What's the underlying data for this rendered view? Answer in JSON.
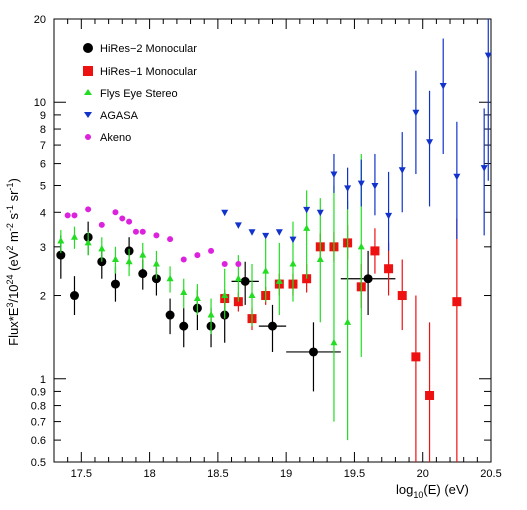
{
  "chart_data": {
    "type": "scatter",
    "title": "",
    "xlabel": {
      "main": "log",
      "sub": "10",
      "rest": "(E) (eV)"
    },
    "ylabel": {
      "a": "Flux*E",
      "b": "3",
      "c": "/10",
      "d": "24",
      "e": " (eV",
      "f": "2",
      "g": " m",
      "h": "-2",
      "i": " s",
      "j": "-1",
      "k": " sr",
      "l": "-1",
      "m": ")"
    },
    "x_scale": "linear",
    "y_scale": "log",
    "xlim": [
      17.3,
      20.5
    ],
    "ylim": [
      0.5,
      20
    ],
    "x_ticks": [
      17.5,
      18,
      18.5,
      19,
      19.5,
      20,
      20.5
    ],
    "x_tick_labels": [
      "17.5",
      "18",
      "18.5",
      "19",
      "19.5",
      "20",
      "20.5"
    ],
    "y_ticks": [
      0.5,
      0.6,
      0.7,
      0.8,
      0.9,
      1,
      2,
      3,
      4,
      5,
      6,
      7,
      8,
      9,
      10,
      20
    ],
    "y_tick_labels": [
      "0.5",
      "0.6",
      "0.7",
      "0.8",
      "0.9",
      "1",
      "2",
      "3",
      "4",
      "5",
      "6",
      "7",
      "8",
      "9",
      "10",
      "20"
    ],
    "grid": false,
    "legend_position": "top-left",
    "series": [
      {
        "name": "HiRes−2 Monocular",
        "marker": "circle",
        "color": "#000000",
        "points": [
          {
            "x": 17.35,
            "y": 2.8,
            "lo": 2.3,
            "hi": 3.3
          },
          {
            "x": 17.45,
            "y": 2.0,
            "lo": 1.7,
            "hi": 2.35
          },
          {
            "x": 17.55,
            "y": 3.25,
            "lo": 2.8,
            "hi": 3.7
          },
          {
            "x": 17.65,
            "y": 2.65,
            "lo": 2.3,
            "hi": 3.0
          },
          {
            "x": 17.75,
            "y": 2.2,
            "lo": 1.9,
            "hi": 2.55
          },
          {
            "x": 17.85,
            "y": 2.9,
            "lo": 2.55,
            "hi": 3.25
          },
          {
            "x": 17.95,
            "y": 2.4,
            "lo": 2.1,
            "hi": 2.7
          },
          {
            "x": 18.05,
            "y": 2.3,
            "lo": 2.0,
            "hi": 2.6
          },
          {
            "x": 18.15,
            "y": 1.7,
            "lo": 1.45,
            "hi": 1.95
          },
          {
            "x": 18.25,
            "y": 1.55,
            "lo": 1.3,
            "hi": 1.8
          },
          {
            "x": 18.35,
            "y": 1.8,
            "lo": 1.5,
            "hi": 2.1
          },
          {
            "x": 18.45,
            "y": 1.55,
            "lo": 1.3,
            "hi": 1.8
          },
          {
            "x": 18.55,
            "y": 1.7,
            "lo": 1.35,
            "hi": 2.05
          },
          {
            "x": 18.7,
            "y": 2.25,
            "lo": 1.85,
            "hi": 2.65,
            "xlo": 18.6,
            "xhi": 18.8
          },
          {
            "x": 18.9,
            "y": 1.55,
            "lo": 1.25,
            "hi": 1.85,
            "xlo": 18.8,
            "xhi": 19.0
          },
          {
            "x": 19.2,
            "y": 1.25,
            "lo": 0.9,
            "hi": 1.6,
            "xlo": 19.0,
            "xhi": 19.4
          },
          {
            "x": 19.6,
            "y": 2.3,
            "lo": 1.7,
            "hi": 2.9,
            "xlo": 19.4,
            "xhi": 19.8
          }
        ]
      },
      {
        "name": "HiRes−1 Monocular",
        "marker": "square",
        "color": "#ee1111",
        "points": [
          {
            "x": 18.55,
            "y": 1.95,
            "lo": 1.8,
            "hi": 2.1
          },
          {
            "x": 18.65,
            "y": 1.9,
            "lo": 1.75,
            "hi": 2.05
          },
          {
            "x": 18.75,
            "y": 1.65,
            "lo": 1.5,
            "hi": 1.8
          },
          {
            "x": 18.85,
            "y": 2.0,
            "lo": 1.85,
            "hi": 2.15
          },
          {
            "x": 18.95,
            "y": 2.2,
            "lo": 2.0,
            "hi": 2.4
          },
          {
            "x": 19.05,
            "y": 2.2,
            "lo": 2.0,
            "hi": 2.4
          },
          {
            "x": 19.15,
            "y": 2.3,
            "lo": 2.05,
            "hi": 2.6
          },
          {
            "x": 19.25,
            "y": 3.0,
            "lo": 2.7,
            "hi": 3.35
          },
          {
            "x": 19.35,
            "y": 3.0,
            "lo": 2.65,
            "hi": 3.4
          },
          {
            "x": 19.45,
            "y": 3.1,
            "lo": 2.7,
            "hi": 3.6
          },
          {
            "x": 19.55,
            "y": 2.15,
            "lo": 1.8,
            "hi": 2.6
          },
          {
            "x": 19.65,
            "y": 2.9,
            "lo": 2.4,
            "hi": 3.5
          },
          {
            "x": 19.75,
            "y": 2.5,
            "lo": 2.0,
            "hi": 3.1
          },
          {
            "x": 19.85,
            "y": 2.0,
            "lo": 1.5,
            "hi": 2.7
          },
          {
            "x": 19.95,
            "y": 1.2,
            "lo": 0.5,
            "hi": 2.0
          },
          {
            "x": 20.05,
            "y": 0.87,
            "lo": 0.5,
            "hi": 1.6
          },
          {
            "x": 20.25,
            "y": 1.9,
            "lo": 0.5,
            "hi": 3.8
          }
        ]
      },
      {
        "name": "Flys Eye Stereo",
        "marker": "triangle-up",
        "color": "#22dd22",
        "points": [
          {
            "x": 17.35,
            "y": 3.15,
            "lo": 2.85,
            "hi": 3.45
          },
          {
            "x": 17.45,
            "y": 3.25,
            "lo": 2.95,
            "hi": 3.55
          },
          {
            "x": 17.55,
            "y": 3.1,
            "lo": 2.8,
            "hi": 3.4
          },
          {
            "x": 17.65,
            "y": 2.95,
            "lo": 2.65,
            "hi": 3.25
          },
          {
            "x": 17.75,
            "y": 2.7,
            "lo": 2.4,
            "hi": 3.0
          },
          {
            "x": 17.85,
            "y": 2.65,
            "lo": 2.35,
            "hi": 2.95
          },
          {
            "x": 17.95,
            "y": 2.8,
            "lo": 2.5,
            "hi": 3.1
          },
          {
            "x": 18.05,
            "y": 2.6,
            "lo": 2.3,
            "hi": 2.9
          },
          {
            "x": 18.15,
            "y": 2.3,
            "lo": 2.05,
            "hi": 2.55
          },
          {
            "x": 18.25,
            "y": 2.05,
            "lo": 1.8,
            "hi": 2.3
          },
          {
            "x": 18.35,
            "y": 1.95,
            "lo": 1.7,
            "hi": 2.2
          },
          {
            "x": 18.45,
            "y": 1.7,
            "lo": 1.45,
            "hi": 1.95
          },
          {
            "x": 18.55,
            "y": 2.0,
            "lo": 1.65,
            "hi": 2.5
          },
          {
            "x": 18.65,
            "y": 2.3,
            "lo": 1.9,
            "hi": 2.8
          },
          {
            "x": 18.75,
            "y": 2.0,
            "lo": 1.55,
            "hi": 2.6
          },
          {
            "x": 18.85,
            "y": 2.45,
            "lo": 1.9,
            "hi": 3.2
          },
          {
            "x": 18.95,
            "y": 2.25,
            "lo": 1.7,
            "hi": 3.1
          },
          {
            "x": 19.05,
            "y": 2.6,
            "lo": 1.9,
            "hi": 3.7
          },
          {
            "x": 19.15,
            "y": 3.5,
            "lo": 2.3,
            "hi": 4.8
          },
          {
            "x": 19.25,
            "y": 2.7,
            "lo": 1.6,
            "hi": 4.5
          },
          {
            "x": 19.35,
            "y": 1.35,
            "lo": 0.7,
            "hi": 5.0
          },
          {
            "x": 19.45,
            "y": 1.6,
            "lo": 0.6,
            "hi": 4.4
          },
          {
            "x": 19.55,
            "y": 3.0,
            "lo": 1.2,
            "hi": 6.5
          }
        ]
      },
      {
        "name": "AGASA",
        "marker": "triangle-down",
        "color": "#1133cc",
        "points": [
          {
            "x": 18.55,
            "y": 4.0
          },
          {
            "x": 18.65,
            "y": 3.6
          },
          {
            "x": 18.75,
            "y": 3.4
          },
          {
            "x": 18.85,
            "y": 3.3
          },
          {
            "x": 18.95,
            "y": 3.4
          },
          {
            "x": 19.05,
            "y": 3.2
          },
          {
            "x": 19.15,
            "y": 4.1
          },
          {
            "x": 19.25,
            "y": 4.0
          },
          {
            "x": 19.35,
            "y": 5.5,
            "lo": 4.7,
            "hi": 6.5
          },
          {
            "x": 19.45,
            "y": 4.9,
            "lo": 4.1,
            "hi": 5.8
          },
          {
            "x": 19.55,
            "y": 5.1,
            "lo": 4.2,
            "hi": 6.2
          },
          {
            "x": 19.65,
            "y": 5.0,
            "lo": 3.9,
            "hi": 6.5
          },
          {
            "x": 19.75,
            "y": 3.9,
            "lo": 2.9,
            "hi": 5.6
          },
          {
            "x": 19.85,
            "y": 5.7,
            "lo": 4.0,
            "hi": 7.8
          },
          {
            "x": 19.95,
            "y": 9.2,
            "lo": 5.5,
            "hi": 13.0
          },
          {
            "x": 20.05,
            "y": 7.2,
            "lo": 4.2,
            "hi": 11.0
          },
          {
            "x": 20.15,
            "y": 11.5,
            "lo": 6.5,
            "hi": 17.0
          },
          {
            "x": 20.25,
            "y": 5.4,
            "lo": 3.2,
            "hi": 8.5
          },
          {
            "x": 20.45,
            "y": 5.8,
            "lo": 3.3,
            "hi": 9.5
          },
          {
            "x": 20.48,
            "y": 14.8,
            "lo": 5.2,
            "hi": 20.0
          }
        ]
      },
      {
        "name": "Akeno",
        "marker": "circle-small",
        "color": "#dd22dd",
        "points": [
          {
            "x": 17.4,
            "y": 3.9
          },
          {
            "x": 17.45,
            "y": 3.9
          },
          {
            "x": 17.55,
            "y": 4.1
          },
          {
            "x": 17.65,
            "y": 3.6
          },
          {
            "x": 17.75,
            "y": 4.0
          },
          {
            "x": 17.8,
            "y": 3.8
          },
          {
            "x": 17.85,
            "y": 3.7
          },
          {
            "x": 17.9,
            "y": 3.4
          },
          {
            "x": 17.95,
            "y": 3.4
          },
          {
            "x": 18.05,
            "y": 3.3
          },
          {
            "x": 18.15,
            "y": 3.2
          },
          {
            "x": 18.25,
            "y": 2.7
          },
          {
            "x": 18.35,
            "y": 2.8
          },
          {
            "x": 18.45,
            "y": 2.9
          },
          {
            "x": 18.55,
            "y": 2.6
          },
          {
            "x": 18.65,
            "y": 2.6
          }
        ]
      }
    ]
  }
}
